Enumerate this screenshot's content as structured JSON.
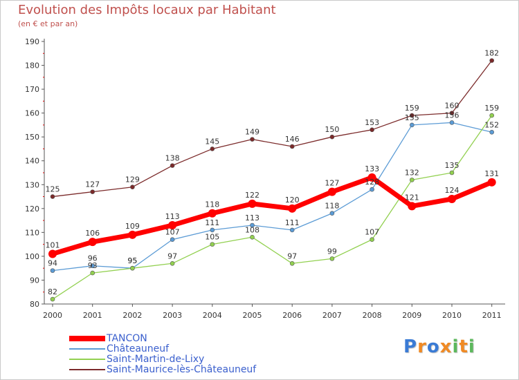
{
  "chart_data": {
    "type": "line",
    "title": "Evolution des Impôts locaux par Habitant",
    "subtitle": "(en € et par an)",
    "xlabel": "",
    "ylabel": "",
    "categories": [
      "2000",
      "2001",
      "2002",
      "2003",
      "2004",
      "2005",
      "2006",
      "2007",
      "2008",
      "2009",
      "2010",
      "2011"
    ],
    "ylim": [
      80,
      190
    ],
    "yticks": [
      "80",
      "90",
      "100",
      "110",
      "120",
      "130",
      "140",
      "150",
      "160",
      "170",
      "180",
      "190"
    ],
    "grid": false,
    "legend_position": "bottom-left",
    "series": [
      {
        "name": "TANCON",
        "color": "#ff0000",
        "values": [
          101,
          106,
          109,
          113,
          118,
          122,
          120,
          127,
          133,
          121,
          124,
          131
        ]
      },
      {
        "name": "Châteauneuf",
        "color": "#5b9bd5",
        "values": [
          94,
          96,
          95,
          107,
          111,
          113,
          111,
          118,
          128,
          155,
          156,
          152
        ]
      },
      {
        "name": "Saint-Martin-de-Lixy",
        "color": "#92d050",
        "values": [
          82,
          93,
          95,
          97,
          105,
          108,
          97,
          99,
          107,
          132,
          135,
          159
        ]
      },
      {
        "name": "Saint-Maurice-lès-Châteauneuf",
        "color": "#7b2a2a",
        "values": [
          125,
          127,
          129,
          138,
          145,
          149,
          146,
          150,
          153,
          159,
          160,
          182
        ]
      }
    ]
  },
  "logo": {
    "letters": [
      "P",
      "r",
      "o",
      "x",
      "i",
      "t",
      "i"
    ],
    "colors": [
      "#3a7bd5",
      "#f08a24",
      "#3a7bd5",
      "#f08a24",
      "#5cb85c",
      "#f08a24",
      "#5cb85c"
    ]
  }
}
